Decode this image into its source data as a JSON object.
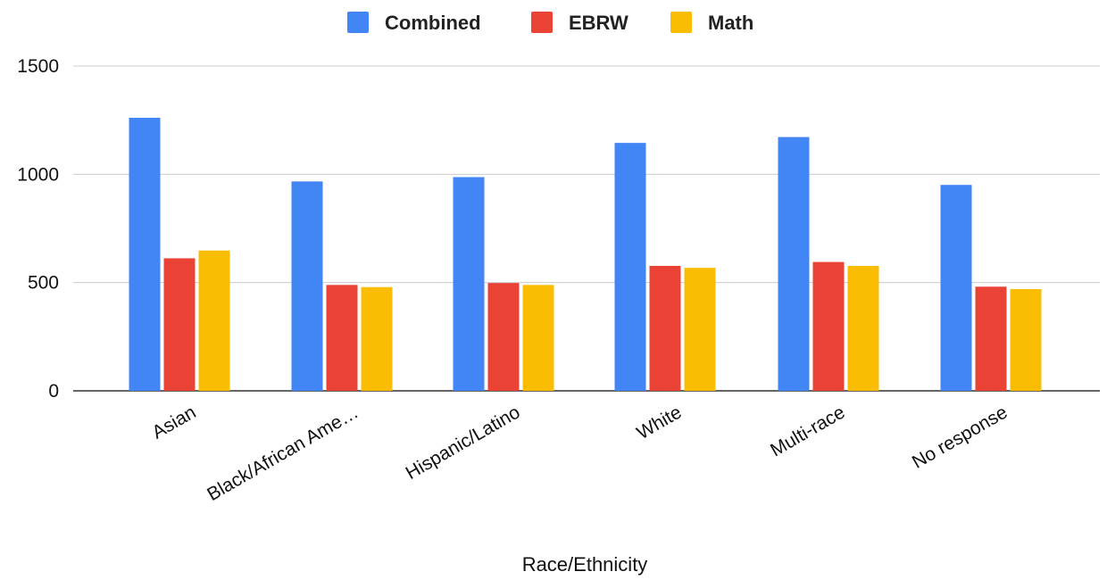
{
  "chart_data": {
    "type": "bar",
    "title": "",
    "xlabel": "Race/Ethnicity",
    "ylabel": "",
    "ylim": [
      0,
      1500
    ],
    "yticks": [
      0,
      500,
      1000,
      1500
    ],
    "grid": true,
    "legend_position": "top-center",
    "categories": [
      "Asian",
      "Black/African Ame…",
      "Hispanic/Latino",
      "White",
      "Multi-race",
      "No response"
    ],
    "series": [
      {
        "name": "Combined",
        "color": "#4285F4",
        "values": [
          1261,
          967,
          987,
          1145,
          1172,
          951
        ]
      },
      {
        "name": "EBRW",
        "color": "#EA4335",
        "values": [
          612,
          489,
          498,
          577,
          595,
          481
        ]
      },
      {
        "name": "Math",
        "color": "#FBBC04",
        "values": [
          648,
          479,
          489,
          568,
          577,
          470
        ]
      }
    ]
  }
}
